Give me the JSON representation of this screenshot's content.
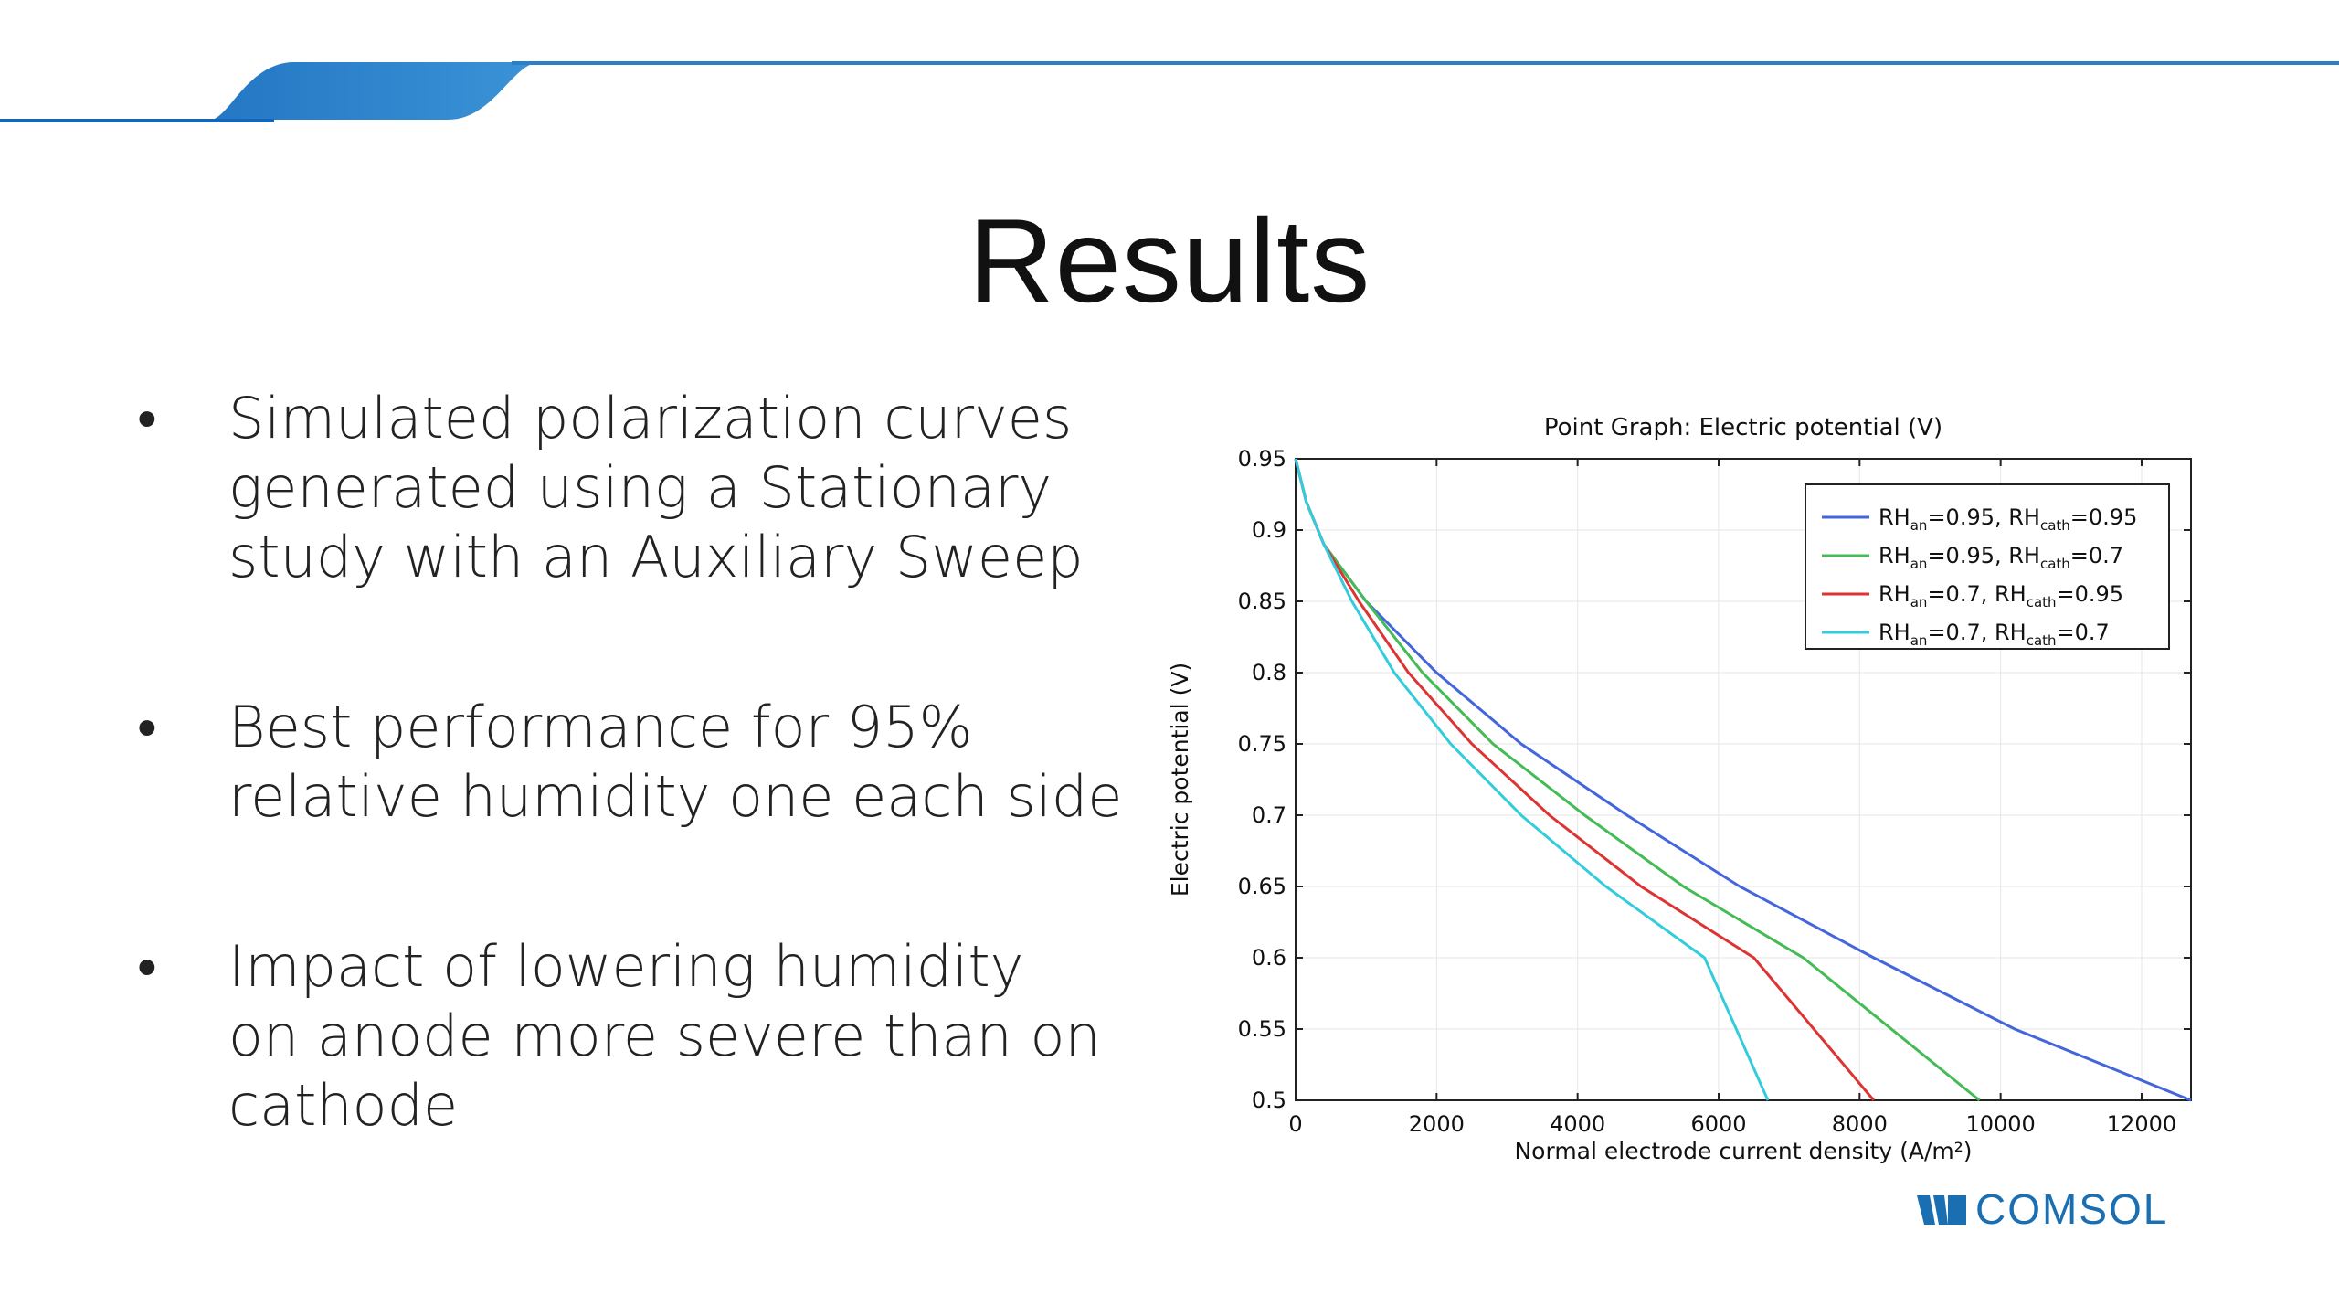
{
  "slide": {
    "title": "Results",
    "accent_color": "#1a6fb3",
    "bullets": [
      {
        "lines": [
          "Simulated polarization curves",
          "generated using a Stationary",
          "study with an Auxiliary Sweep"
        ]
      },
      {
        "lines": [
          "Best performance for 95%",
          "relative humidity one each side"
        ]
      },
      {
        "lines": [
          "Impact of lowering humidity",
          "on anode more severe than on",
          "cathode"
        ]
      }
    ],
    "bullet_glyph": "•",
    "logo_text": "COMSOL"
  },
  "chart_data": {
    "type": "line",
    "title": "Point Graph: Electric potential (V)",
    "xlabel": "Normal electrode current density (A/m²)",
    "ylabel": "Electric potential (V)",
    "xlim": [
      0,
      12700
    ],
    "ylim": [
      0.5,
      0.95
    ],
    "xticks": [
      0,
      2000,
      4000,
      6000,
      8000,
      10000,
      12000
    ],
    "yticks": [
      0.5,
      0.55,
      0.6,
      0.65,
      0.7,
      0.75,
      0.8,
      0.85,
      0.9,
      0.95
    ],
    "ytick_labels": [
      "0.5",
      "0.55",
      "0.6",
      "0.65",
      "0.7",
      "0.75",
      "0.8",
      "0.85",
      "0.9",
      "0.95"
    ],
    "grid": true,
    "legend_position": "top-right",
    "series": [
      {
        "name_parts": [
          "RH",
          "an",
          "=0.95, RH",
          "cath",
          "=0.95"
        ],
        "color": "#4466dd",
        "x": [
          0,
          150,
          400,
          1000,
          2000,
          3200,
          4700,
          6300,
          8200,
          10200,
          12700
        ],
        "y": [
          0.95,
          0.92,
          0.89,
          0.85,
          0.8,
          0.75,
          0.7,
          0.65,
          0.6,
          0.55,
          0.5
        ]
      },
      {
        "name_parts": [
          "RH",
          "an",
          "=0.95, RH",
          "cath",
          "=0.7"
        ],
        "color": "#44bb55",
        "x": [
          0,
          150,
          400,
          1000,
          1800,
          2800,
          4100,
          5500,
          7200,
          9700
        ],
        "y": [
          0.95,
          0.92,
          0.89,
          0.85,
          0.8,
          0.75,
          0.7,
          0.65,
          0.6,
          0.5
        ]
      },
      {
        "name_parts": [
          "RH",
          "an",
          "=0.7, RH",
          "cath",
          "=0.95"
        ],
        "color": "#dd3333",
        "x": [
          0,
          150,
          400,
          900,
          1600,
          2500,
          3600,
          4900,
          6500,
          8200
        ],
        "y": [
          0.95,
          0.92,
          0.89,
          0.85,
          0.8,
          0.75,
          0.7,
          0.65,
          0.6,
          0.5
        ]
      },
      {
        "name_parts": [
          "RH",
          "an",
          "=0.7, RH",
          "cath",
          "=0.7"
        ],
        "color": "#33ccdd",
        "x": [
          0,
          150,
          400,
          800,
          1400,
          2200,
          3200,
          4400,
          5800,
          6700
        ],
        "y": [
          0.95,
          0.92,
          0.89,
          0.85,
          0.8,
          0.75,
          0.7,
          0.65,
          0.6,
          0.5
        ]
      }
    ]
  }
}
